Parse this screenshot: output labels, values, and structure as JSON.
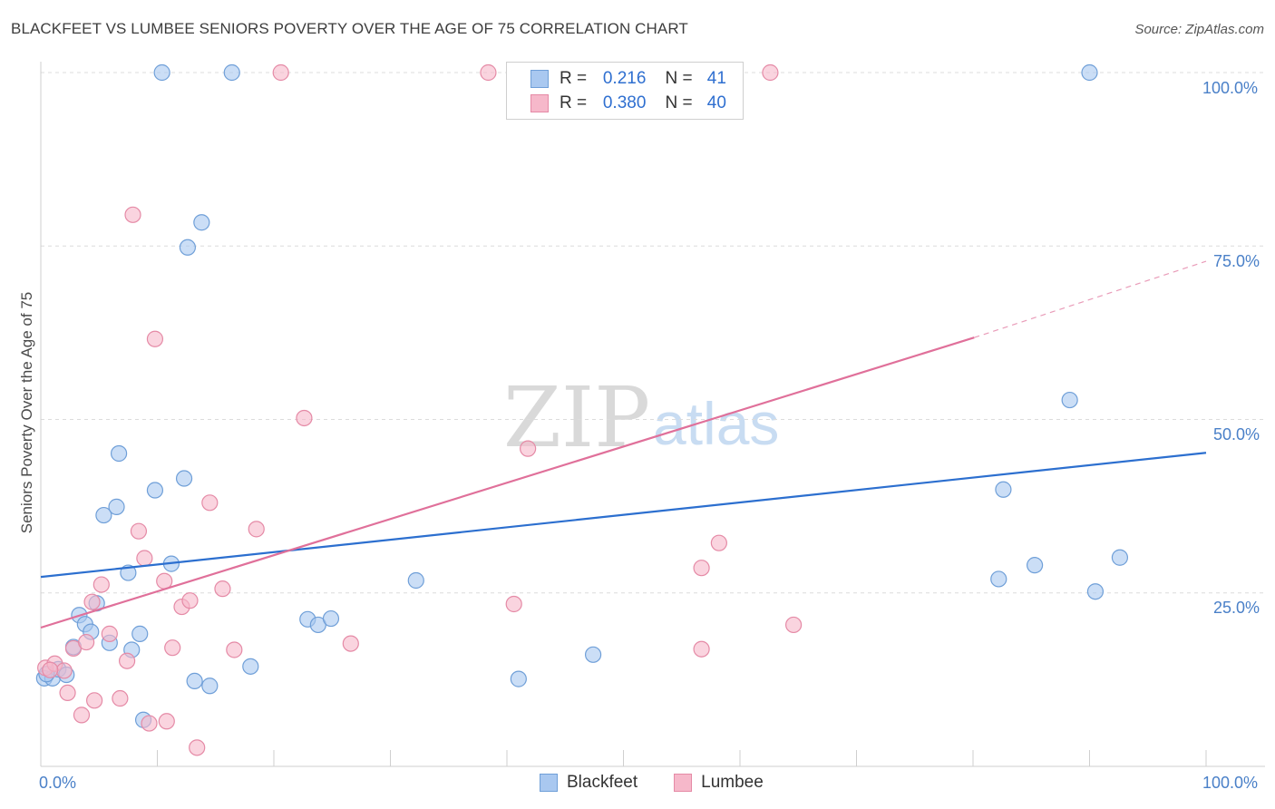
{
  "title": "BLACKFEET VS LUMBEE SENIORS POVERTY OVER THE AGE OF 75 CORRELATION CHART",
  "source": "Source: ZipAtlas.com",
  "watermark": {
    "zip": "ZIP",
    "atlas": "atlas"
  },
  "legend_top": [
    {
      "r_label": "R =",
      "r_value": "0.216",
      "n_label": "N =",
      "n_value": "41"
    },
    {
      "r_label": "R =",
      "r_value": "0.380",
      "n_label": "N =",
      "n_value": "40"
    }
  ],
  "legend_bottom": [
    "Blackfeet",
    "Lumbee"
  ],
  "colors": {
    "blackfeet_fill": "#a9c8f0",
    "blackfeet_stroke": "#6f9fd8",
    "blackfeet_line": "#2c6fcf",
    "lumbee_fill": "#f6b8ca",
    "lumbee_stroke": "#e58aa6",
    "lumbee_line": "#e0709a",
    "tick_text": "#4a80c8"
  },
  "chart_data": {
    "type": "scatter",
    "title": "BLACKFEET VS LUMBEE SENIORS POVERTY OVER THE AGE OF 75 CORRELATION CHART",
    "xlabel": "",
    "ylabel": "Seniors Poverty Over the Age of 75",
    "xlim": [
      0,
      100
    ],
    "ylim": [
      0,
      100
    ],
    "x_tick_labels": [
      "0.0%",
      "100.0%"
    ],
    "y_tick_labels": [
      "25.0%",
      "50.0%",
      "75.0%",
      "100.0%"
    ],
    "y_ticks": [
      25,
      50,
      75,
      100
    ],
    "series": [
      {
        "name": "Blackfeet",
        "r": 0.216,
        "n": 41,
        "trend": {
          "x": [
            0,
            100
          ],
          "y": [
            27.3,
            45.2
          ]
        },
        "points": [
          [
            0.3,
            12.7
          ],
          [
            1.0,
            12.7
          ],
          [
            1.5,
            14.0
          ],
          [
            2.2,
            13.2
          ],
          [
            2.8,
            17.2
          ],
          [
            3.3,
            21.8
          ],
          [
            3.8,
            20.5
          ],
          [
            4.3,
            19.4
          ],
          [
            4.8,
            23.5
          ],
          [
            5.4,
            36.2
          ],
          [
            5.9,
            17.8
          ],
          [
            6.5,
            37.4
          ],
          [
            6.7,
            45.1
          ],
          [
            7.5,
            27.9
          ],
          [
            7.8,
            16.8
          ],
          [
            8.5,
            19.1
          ],
          [
            8.8,
            6.7
          ],
          [
            9.8,
            39.8
          ],
          [
            10.4,
            100
          ],
          [
            11.2,
            29.2
          ],
          [
            12.3,
            41.5
          ],
          [
            12.6,
            74.8
          ],
          [
            13.2,
            12.3
          ],
          [
            13.8,
            78.4
          ],
          [
            14.5,
            11.6
          ],
          [
            16.4,
            100
          ],
          [
            18.0,
            14.4
          ],
          [
            22.9,
            21.2
          ],
          [
            23.8,
            20.4
          ],
          [
            24.9,
            21.3
          ],
          [
            32.2,
            26.8
          ],
          [
            41.0,
            12.6
          ],
          [
            47.4,
            16.1
          ],
          [
            82.6,
            39.9
          ],
          [
            82.2,
            27.0
          ],
          [
            85.3,
            29.0
          ],
          [
            88.3,
            52.8
          ],
          [
            90.0,
            100
          ],
          [
            90.5,
            25.2
          ],
          [
            92.6,
            30.1
          ],
          [
            0.5,
            13.3
          ]
        ]
      },
      {
        "name": "Lumbee",
        "r": 0.38,
        "n": 40,
        "trend": {
          "x": [
            0,
            80.1
          ],
          "y": [
            20.0,
            61.8
          ]
        },
        "trend_dashed": {
          "x": [
            80.1,
            100
          ],
          "y": [
            61.8,
            72.8
          ]
        },
        "points": [
          [
            0.4,
            14.2
          ],
          [
            1.2,
            14.8
          ],
          [
            2.0,
            13.8
          ],
          [
            2.3,
            10.6
          ],
          [
            2.8,
            17.0
          ],
          [
            3.5,
            7.4
          ],
          [
            3.9,
            17.9
          ],
          [
            4.4,
            23.7
          ],
          [
            4.6,
            9.5
          ],
          [
            5.2,
            26.2
          ],
          [
            5.9,
            19.1
          ],
          [
            6.8,
            9.8
          ],
          [
            7.4,
            15.2
          ],
          [
            7.9,
            79.5
          ],
          [
            8.4,
            33.9
          ],
          [
            8.9,
            30.0
          ],
          [
            9.3,
            6.2
          ],
          [
            9.8,
            61.6
          ],
          [
            10.6,
            26.7
          ],
          [
            10.8,
            6.5
          ],
          [
            11.3,
            17.1
          ],
          [
            12.1,
            23.0
          ],
          [
            12.8,
            23.9
          ],
          [
            13.4,
            2.7
          ],
          [
            14.5,
            38.0
          ],
          [
            15.6,
            25.6
          ],
          [
            16.6,
            16.8
          ],
          [
            20.6,
            100
          ],
          [
            18.5,
            34.2
          ],
          [
            22.6,
            50.2
          ],
          [
            26.6,
            17.7
          ],
          [
            38.4,
            100
          ],
          [
            40.6,
            23.4
          ],
          [
            41.8,
            45.8
          ],
          [
            56.7,
            28.6
          ],
          [
            56.7,
            16.9
          ],
          [
            58.2,
            32.2
          ],
          [
            62.6,
            100
          ],
          [
            64.6,
            20.4
          ],
          [
            0.8,
            13.9
          ]
        ]
      }
    ]
  }
}
